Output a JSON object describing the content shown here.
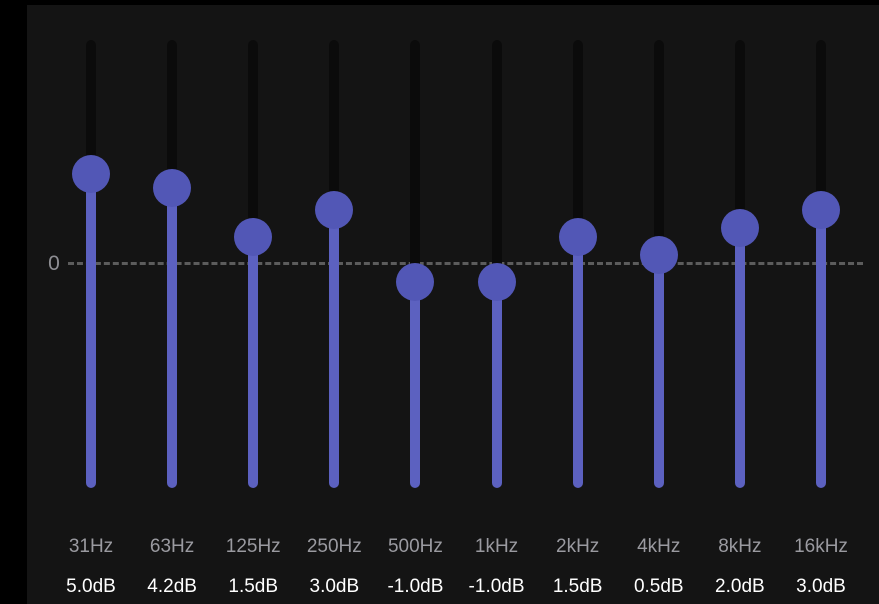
{
  "equalizer": {
    "zero_label": "0",
    "range_db": [
      -12,
      12
    ],
    "colors": {
      "accent": "#5257B6",
      "fill": "#5C61C0",
      "track": "#0B0B0B",
      "panel": "#141414",
      "background": "#000000",
      "dash": "#5C5C5C"
    },
    "bands": [
      {
        "freq": "31Hz",
        "gain_label": "5.0dB",
        "value": 5.0
      },
      {
        "freq": "63Hz",
        "gain_label": "4.2dB",
        "value": 4.2
      },
      {
        "freq": "125Hz",
        "gain_label": "1.5dB",
        "value": 1.5
      },
      {
        "freq": "250Hz",
        "gain_label": "3.0dB",
        "value": 3.0
      },
      {
        "freq": "500Hz",
        "gain_label": "-1.0dB",
        "value": -1.0
      },
      {
        "freq": "1kHz",
        "gain_label": "-1.0dB",
        "value": -1.0
      },
      {
        "freq": "2kHz",
        "gain_label": "1.5dB",
        "value": 1.5
      },
      {
        "freq": "4kHz",
        "gain_label": "0.5dB",
        "value": 0.5
      },
      {
        "freq": "8kHz",
        "gain_label": "2.0dB",
        "value": 2.0
      },
      {
        "freq": "16kHz",
        "gain_label": "3.0dB",
        "value": 3.0
      }
    ]
  }
}
